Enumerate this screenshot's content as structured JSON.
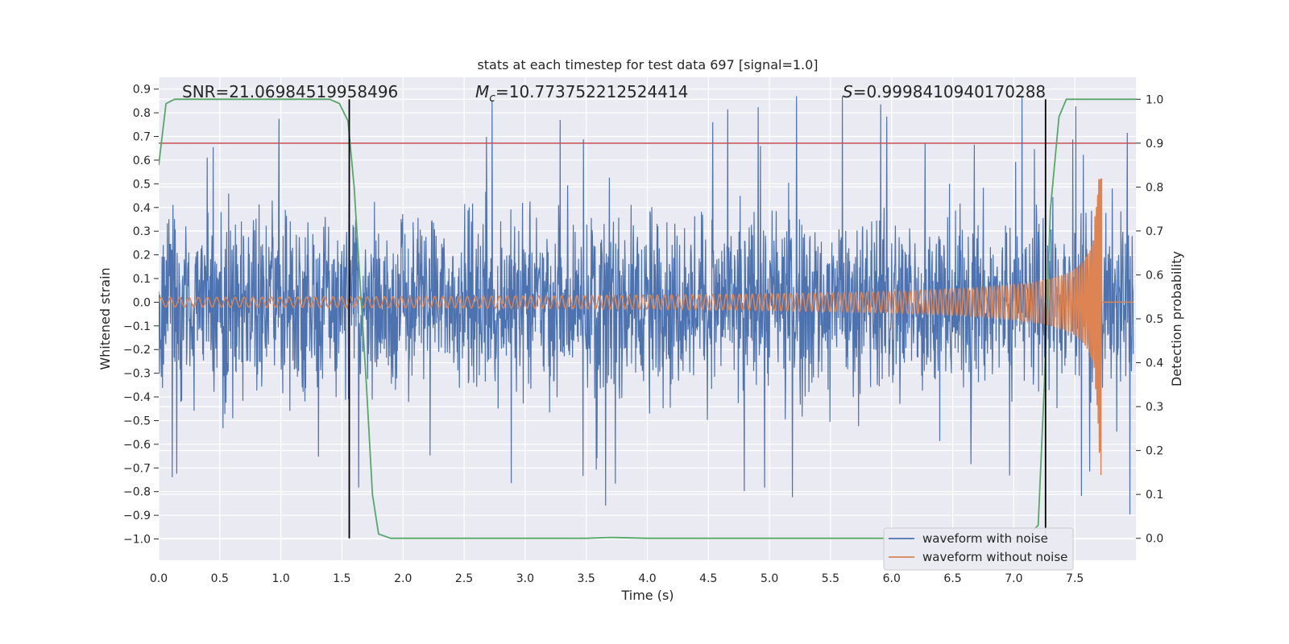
{
  "chart_data": {
    "type": "line",
    "title": "stats at each timestep for test data 697 [signal=1.0]",
    "xlabel": "Time (s)",
    "ylabel": "Whitened strain",
    "y2label": "Detection probability",
    "xlim": [
      0.0,
      8.0
    ],
    "ylim": [
      -1.09,
      0.95
    ],
    "y2lim": [
      -0.05,
      1.05
    ],
    "xticks": [
      "0.0",
      "0.5",
      "1.0",
      "1.5",
      "2.0",
      "2.5",
      "3.0",
      "3.5",
      "4.0",
      "4.5",
      "5.0",
      "5.5",
      "6.0",
      "6.5",
      "7.0",
      "7.5"
    ],
    "yticks": [
      "0.9",
      "0.8",
      "0.7",
      "0.6",
      "0.5",
      "0.4",
      "0.3",
      "0.2",
      "0.1",
      "0.0",
      "−0.1",
      "−0.2",
      "−0.3",
      "−0.4",
      "−0.5",
      "−0.6",
      "−0.7",
      "−0.8",
      "−0.9",
      "−1.0"
    ],
    "y2ticks": [
      "0.0",
      "0.1",
      "0.2",
      "0.3",
      "0.4",
      "0.5",
      "0.6",
      "0.7",
      "0.8",
      "0.9",
      "1.0"
    ],
    "annotations": {
      "snr": "SNR=21.06984519958496",
      "mc_symbol": "M",
      "mc_sub": "c",
      "mc_value": "=10.773752212524414",
      "s_symbol": "S",
      "s_value": "=0.9998410940170288"
    },
    "threshold_line": {
      "axis": "y2",
      "value": 0.9,
      "color": "#c44e52"
    },
    "vertical_lines": [
      1.56,
      7.26
    ],
    "series": [
      {
        "name": "waveform with noise",
        "color": "#4c72b0",
        "axis": "y",
        "envelope": {
          "amplitude": 0.55,
          "peak_min": -1.0,
          "peak_max": 0.87
        }
      },
      {
        "name": "waveform without noise",
        "color": "#dd8452",
        "axis": "y",
        "chirp": {
          "start_amplitude": 0.02,
          "peak_time": 7.7,
          "peak_value": 0.52,
          "trough_value": -0.73,
          "end_time": 7.72
        }
      },
      {
        "name": "",
        "color": "#55a868",
        "axis": "y2",
        "x": [
          0.0,
          0.06,
          0.13,
          0.5,
          1.0,
          1.4,
          1.48,
          1.55,
          1.6,
          1.7,
          1.75,
          1.8,
          1.9,
          2.5,
          3.0,
          3.5,
          3.7,
          4.0,
          5.0,
          6.0,
          6.5,
          7.0,
          7.1,
          7.2,
          7.25,
          7.3,
          7.37,
          7.43,
          7.5,
          8.0
        ],
        "values": [
          0.85,
          0.99,
          1.0,
          1.0,
          1.0,
          1.0,
          0.99,
          0.95,
          0.8,
          0.35,
          0.1,
          0.01,
          0.0,
          0.0,
          0.0,
          0.0,
          0.002,
          0.0,
          0.0,
          0.0,
          0.0,
          0.0,
          0.0,
          0.03,
          0.35,
          0.75,
          0.96,
          1.0,
          1.0,
          1.0
        ]
      }
    ],
    "legend_position": "lower-right",
    "grid": true
  }
}
